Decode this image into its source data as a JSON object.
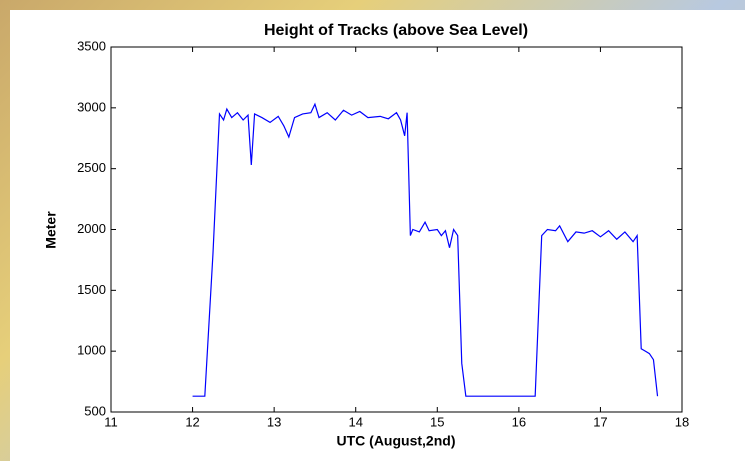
{
  "chart_data": {
    "type": "line",
    "title": "Height of Tracks (above Sea Level)",
    "x_label": "UTC (August,2nd)",
    "y_label": "Meter",
    "xlim": [
      11,
      18
    ],
    "xticks": [
      11,
      12,
      13,
      14,
      15,
      16,
      17,
      18
    ],
    "ylim": [
      500,
      3500
    ],
    "yticks": [
      500,
      1000,
      1500,
      2000,
      2500,
      3000,
      3500
    ],
    "grid": false,
    "series": [
      {
        "color": "#0000ff",
        "x": [
          12.0,
          12.15,
          12.25,
          12.33,
          12.38,
          12.42,
          12.48,
          12.55,
          12.62,
          12.68,
          12.72,
          12.76,
          12.85,
          12.95,
          13.05,
          13.12,
          13.18,
          13.25,
          13.35,
          13.45,
          13.5,
          13.55,
          13.65,
          13.75,
          13.85,
          13.95,
          14.05,
          14.15,
          14.3,
          14.4,
          14.5,
          14.55,
          14.6,
          14.63,
          14.67,
          14.7,
          14.78,
          14.85,
          14.9,
          15.0,
          15.05,
          15.1,
          15.15,
          15.2,
          15.25,
          15.3,
          15.35,
          16.0,
          16.2,
          16.28,
          16.35,
          16.45,
          16.5,
          16.6,
          16.7,
          16.8,
          16.9,
          17.0,
          17.1,
          17.2,
          17.3,
          17.4,
          17.45,
          17.5,
          17.55,
          17.6,
          17.65,
          17.7
        ],
        "values": [
          630,
          630,
          1800,
          2950,
          2900,
          2990,
          2920,
          2960,
          2900,
          2940,
          2530,
          2950,
          2920,
          2880,
          2930,
          2850,
          2760,
          2920,
          2950,
          2960,
          3030,
          2920,
          2960,
          2900,
          2980,
          2940,
          2970,
          2920,
          2930,
          2910,
          2960,
          2900,
          2770,
          2960,
          1950,
          2000,
          1980,
          2060,
          1990,
          2000,
          1950,
          1990,
          1850,
          2000,
          1950,
          900,
          630,
          630,
          630,
          1950,
          2000,
          1990,
          2030,
          1900,
          1980,
          1970,
          1990,
          1940,
          1990,
          1920,
          1980,
          1900,
          1950,
          1020,
          1000,
          980,
          930,
          630
        ]
      }
    ]
  }
}
